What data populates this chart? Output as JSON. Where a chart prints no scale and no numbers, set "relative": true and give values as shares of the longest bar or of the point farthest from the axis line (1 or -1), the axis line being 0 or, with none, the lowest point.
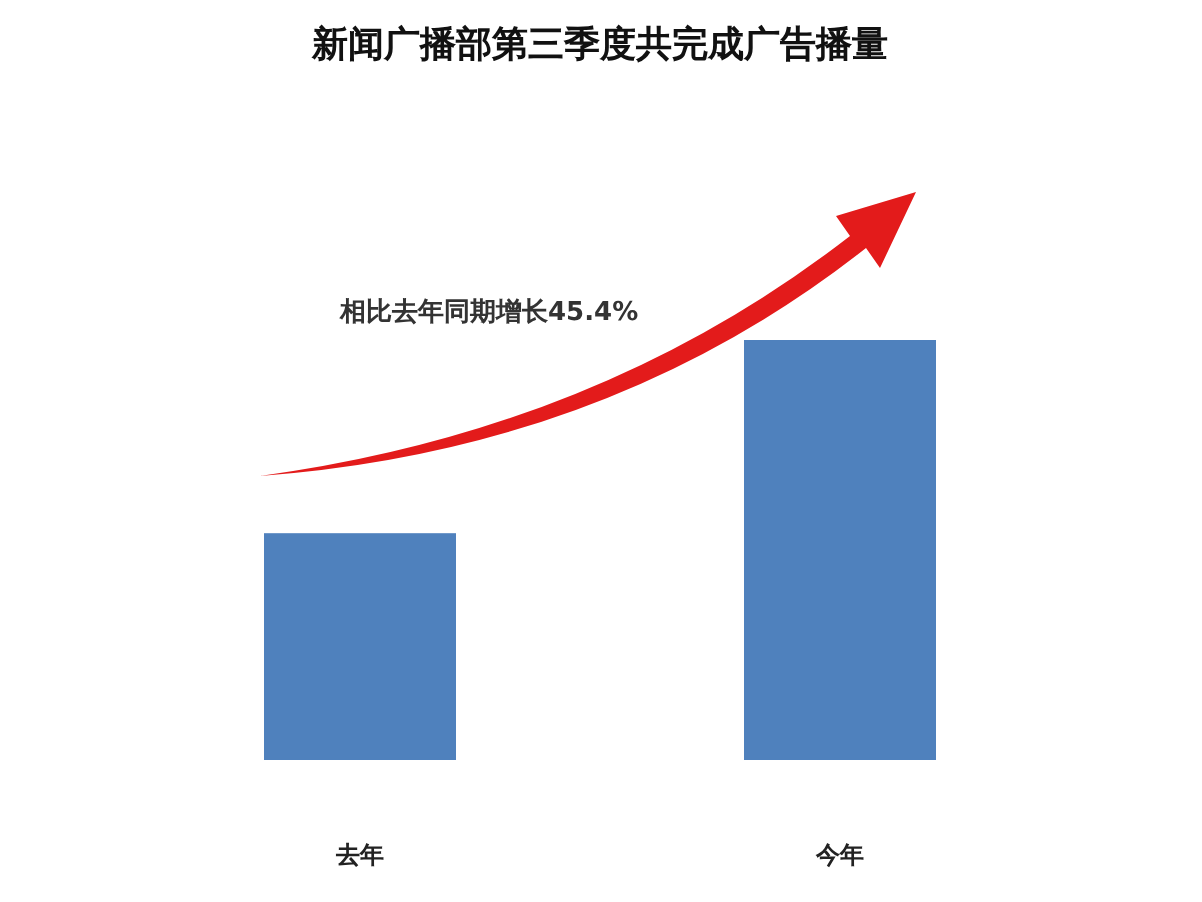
{
  "chart_data": {
    "type": "bar",
    "title": "新闻广播部第三季度共完成广告播量",
    "categories": [
      "去年",
      "今年"
    ],
    "values": [
      0.54,
      1
    ],
    "color": "#4f81bd",
    "relative": true,
    "annotations": [
      "相比去年同期增长45.4%"
    ]
  }
}
